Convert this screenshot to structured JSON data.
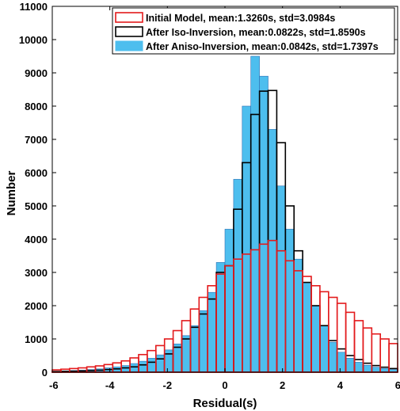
{
  "chart_data": {
    "type": "bar",
    "title": "",
    "xlabel": "Residual(s)",
    "ylabel": "Number",
    "xlim": [
      -6,
      6
    ],
    "ylim": [
      0,
      11000
    ],
    "bin_width": 0.3,
    "bin_start": -6,
    "x_ticks": [
      -6,
      -4,
      -2,
      0,
      2,
      4,
      6
    ],
    "y_ticks": [
      0,
      1000,
      2000,
      3000,
      4000,
      5000,
      6000,
      7000,
      8000,
      9000,
      10000,
      11000
    ],
    "grid": false,
    "legend_position": "top-right",
    "series": [
      {
        "name": "Initial Model, mean:1.3260s, std=3.0984s",
        "style": "outline",
        "color": "#e31a1c",
        "values": [
          70,
          90,
          110,
          130,
          160,
          190,
          230,
          280,
          340,
          430,
          530,
          650,
          800,
          1000,
          1250,
          1550,
          1900,
          2250,
          2600,
          2950,
          3200,
          3400,
          3550,
          3680,
          3850,
          3960,
          3650,
          3350,
          3050,
          2880,
          2600,
          2420,
          2250,
          2070,
          1800,
          1550,
          1330,
          1150,
          1000,
          860
        ]
      },
      {
        "name": "After Iso-Inversion, mean:0.0822s, std=1.8590s",
        "style": "outline",
        "color": "#000000",
        "values": [
          20,
          25,
          30,
          40,
          50,
          60,
          80,
          100,
          130,
          160,
          220,
          300,
          400,
          550,
          750,
          1000,
          1350,
          1750,
          2200,
          3000,
          3200,
          4900,
          6300,
          7750,
          8450,
          8470,
          6900,
          5000,
          3650,
          2700,
          2000,
          1400,
          950,
          700,
          500,
          380,
          270,
          200,
          150,
          110
        ]
      },
      {
        "name": "After Aniso-Inversion, mean:0.0842s, std=1.7397s",
        "style": "filled",
        "color": "#4dbeee",
        "values": [
          30,
          40,
          50,
          60,
          80,
          100,
          130,
          160,
          200,
          260,
          330,
          420,
          520,
          670,
          850,
          1100,
          1400,
          1850,
          2400,
          3300,
          4300,
          5800,
          8000,
          9500,
          8900,
          7300,
          5600,
          4300,
          3400,
          2700,
          2000,
          1400,
          900,
          600,
          420,
          300,
          210,
          150,
          110,
          80
        ]
      }
    ]
  },
  "colors": {
    "initial": "#e31a1c",
    "iso": "#000000",
    "aniso_fill": "#4dbeee",
    "aniso_edge": "#2f6fb3"
  }
}
